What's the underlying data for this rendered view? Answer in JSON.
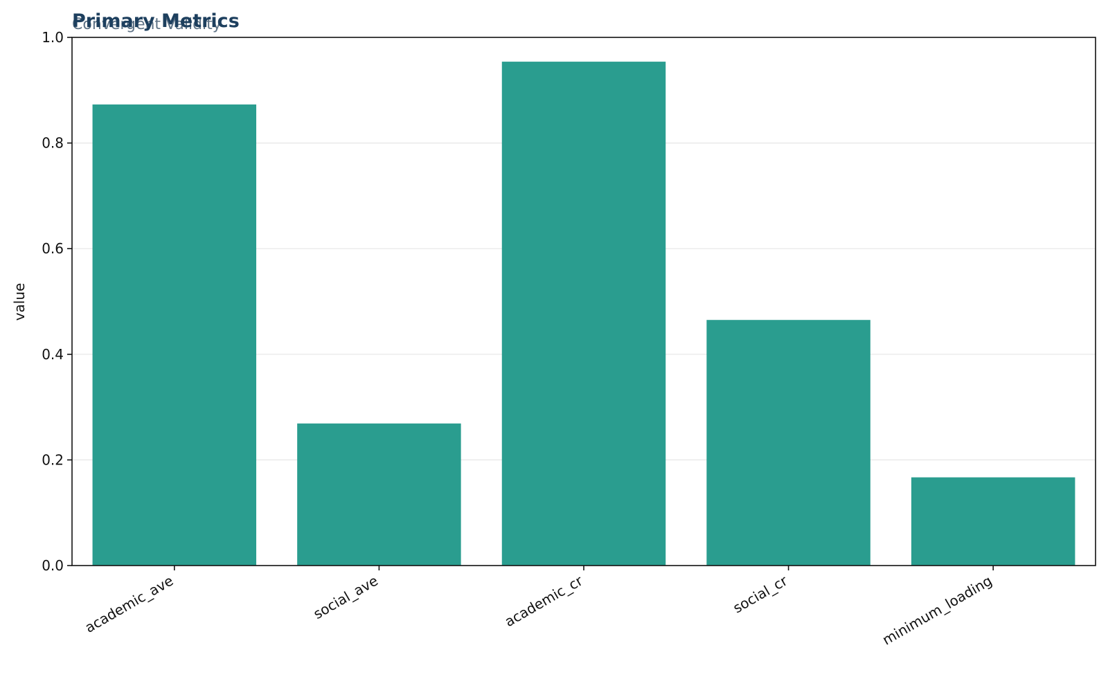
{
  "chart_data": {
    "type": "bar",
    "title": "Primary Metrics",
    "subtitle": "Convergent Validity",
    "xlabel": "",
    "ylabel": "value",
    "categories": [
      "academic_ave",
      "social_ave",
      "academic_cr",
      "social_cr",
      "minimum_loading"
    ],
    "values": [
      0.873,
      0.269,
      0.954,
      0.465,
      0.167
    ],
    "ylim": [
      0,
      1.0
    ],
    "yticks": [
      "0.0",
      "0.2",
      "0.4",
      "0.6",
      "0.8",
      "1.0"
    ],
    "grid": true,
    "bar_color": "#2a9d8f"
  }
}
